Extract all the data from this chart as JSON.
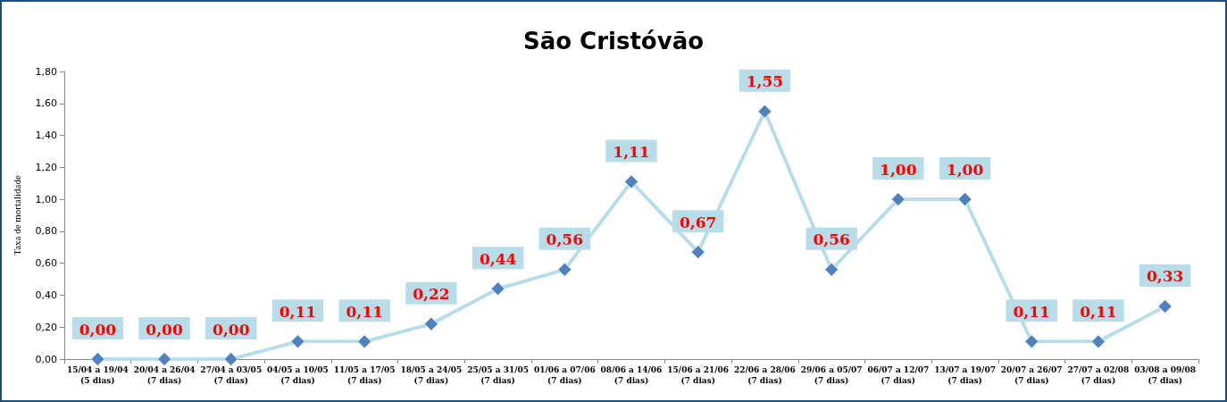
{
  "chart_data": {
    "type": "line",
    "title": "São Cristóvão",
    "ylabel": "Taxa de mortalidade",
    "categories": [
      "15/04 a 19/04\n(5 dias)",
      "20/04 a 26/04\n(7 dias)",
      "27/04 a 03/05\n(7 dias)",
      "04/05 a 10/05\n(7 dias)",
      "11/05 a 17/05\n(7 dias)",
      "18/05 a 24/05\n(7 dias)",
      "25/05 a 31/05\n(7 dias)",
      "01/06 a 07/06\n(7 dias)",
      "08/06 a 14/06\n(7 dias)",
      "15/06 a 21/06\n(7 dias)",
      "22/06 a 28/06\n(7 dias)",
      "29/06 a 05/07\n(7 dias)",
      "06/07 a 12/07\n(7 dias)",
      "13/07 a 19/07\n(7 dias)",
      "20/07 a 26/07\n(7 dias)",
      "27/07 a 02/08\n(7 dias)",
      "03/08 a 09/08\n(7 dias)"
    ],
    "series": [
      {
        "color": "#b7dde8",
        "values": [
          0,
          0,
          0,
          0.11,
          0.11,
          0.22,
          0.44,
          0.56,
          1.11,
          0.67,
          1.55,
          0.56,
          1,
          1,
          0.11,
          0.11,
          0.33
        ],
        "value_labels": [
          "0,00",
          "0,00",
          "0,00",
          "0,11",
          "0,11",
          "0,22",
          "0,44",
          "0,56",
          "1,11",
          "0,67",
          "1,55",
          "0,56",
          "1,00",
          "1,00",
          "0,11",
          "0,11",
          "0,33"
        ]
      }
    ],
    "ylim": [
      0,
      1.8
    ],
    "yticks": [
      {
        "value": 0,
        "label": "0,00"
      },
      {
        "value": 0.2,
        "label": "0,20"
      },
      {
        "value": 0.4,
        "label": "0,40"
      },
      {
        "value": 0.6,
        "label": "0,60"
      },
      {
        "value": 0.8,
        "label": "0,80"
      },
      {
        "value": 1,
        "label": "1,00"
      },
      {
        "value": 1.2,
        "label": "1,20"
      },
      {
        "value": 1.4,
        "label": "1,40"
      },
      {
        "value": 1.6,
        "label": "1,60"
      },
      {
        "value": 1.8,
        "label": "1,80"
      }
    ],
    "grid": false,
    "marker": "diamond",
    "line_style": "solid"
  }
}
